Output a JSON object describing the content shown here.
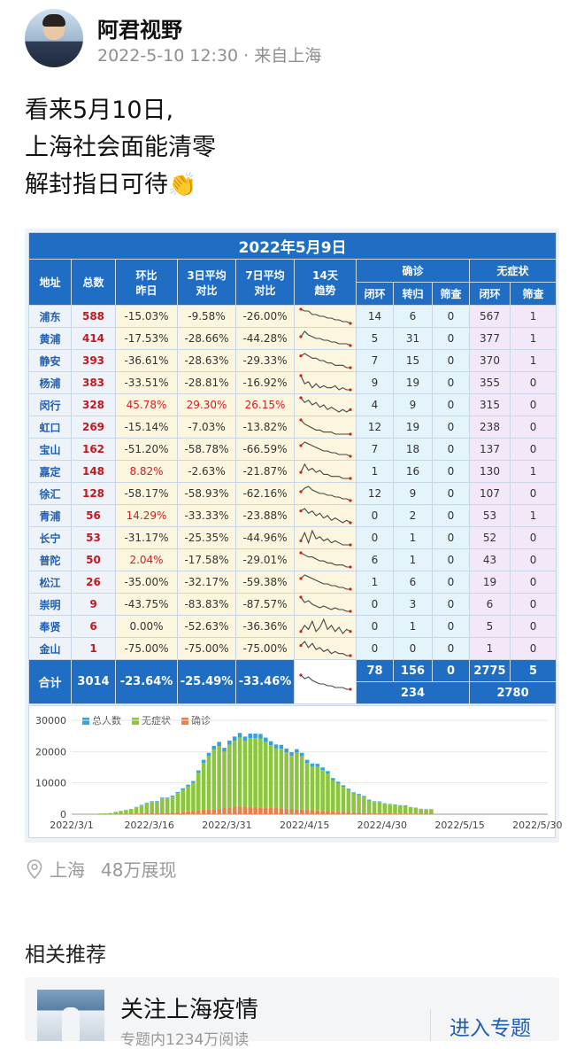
{
  "post": {
    "author": "阿君视野",
    "meta": "2022-5-10 12:30 · 来自上海",
    "lines": [
      "看来5月10日,",
      "上海社会面能清零",
      "解封指日可待"
    ],
    "emoji": "👏"
  },
  "table": {
    "title": "2022年5月9日",
    "headers": {
      "district": "地址",
      "total": "总数",
      "dod": [
        "环比",
        "昨日"
      ],
      "d3": [
        "3日平均",
        "对比"
      ],
      "d7": [
        "7日平均",
        "对比"
      ],
      "trend": [
        "14天",
        "趋势"
      ],
      "confirmed": "确诊",
      "asymptomatic": "无症状",
      "closed_loop": "闭环",
      "converted": "转归",
      "screening": "筛查",
      "closed_loop2": "闭环",
      "screening2": "筛查"
    },
    "rows": [
      {
        "name": "浦东",
        "total": "588",
        "dod": "-15.03%",
        "d3": "-9.58%",
        "d7": "-26.00%",
        "c1": "14",
        "c2": "6",
        "c3": "0",
        "a1": "567",
        "a2": "1",
        "spark": [
          9,
          8,
          8,
          6,
          6,
          5,
          5,
          4,
          4,
          3,
          3,
          2,
          2,
          1
        ]
      },
      {
        "name": "黄浦",
        "total": "414",
        "dod": "-17.53%",
        "d3": "-28.66%",
        "d7": "-44.28%",
        "c1": "5",
        "c2": "31",
        "c3": "0",
        "a1": "377",
        "a2": "1",
        "spark": [
          6,
          9,
          7,
          6,
          5,
          5,
          4,
          4,
          3,
          3,
          2,
          2,
          2,
          1
        ]
      },
      {
        "name": "静安",
        "total": "393",
        "dod": "-36.61%",
        "d3": "-28.63%",
        "d7": "-29.33%",
        "c1": "7",
        "c2": "15",
        "c3": "0",
        "a1": "370",
        "a2": "1",
        "spark": [
          7,
          8,
          7,
          6,
          6,
          5,
          5,
          4,
          4,
          3,
          3,
          3,
          2,
          2
        ]
      },
      {
        "name": "杨浦",
        "total": "383",
        "dod": "-33.51%",
        "d3": "-28.81%",
        "d7": "-16.92%",
        "c1": "9",
        "c2": "19",
        "c3": "0",
        "a1": "355",
        "a2": "0",
        "spark": [
          9,
          5,
          6,
          3,
          5,
          3,
          4,
          3,
          3,
          4,
          2,
          3,
          2,
          2
        ]
      },
      {
        "name": "闵行",
        "total": "328",
        "dod": "45.78%",
        "d3": "29.30%",
        "d7": "26.15%",
        "c1": "4",
        "c2": "9",
        "c3": "0",
        "a1": "315",
        "a2": "0",
        "spark": [
          8,
          6,
          7,
          5,
          6,
          4,
          5,
          3,
          4,
          3,
          2,
          3,
          2,
          3
        ]
      },
      {
        "name": "虹口",
        "total": "269",
        "dod": "-15.14%",
        "d3": "-7.03%",
        "d7": "-13.82%",
        "c1": "12",
        "c2": "19",
        "c3": "0",
        "a1": "238",
        "a2": "0",
        "spark": [
          9,
          7,
          6,
          5,
          4,
          4,
          3,
          3,
          3,
          2,
          2,
          2,
          2,
          2
        ]
      },
      {
        "name": "宝山",
        "total": "162",
        "dod": "-51.20%",
        "d3": "-58.78%",
        "d7": "-66.59%",
        "c1": "7",
        "c2": "18",
        "c3": "0",
        "a1": "137",
        "a2": "0",
        "spark": [
          7,
          9,
          8,
          7,
          6,
          5,
          4,
          4,
          3,
          3,
          2,
          2,
          2,
          1
        ]
      },
      {
        "name": "嘉定",
        "total": "148",
        "dod": "8.82%",
        "d3": "-2.63%",
        "d7": "-21.87%",
        "c1": "1",
        "c2": "16",
        "c3": "0",
        "a1": "130",
        "a2": "1",
        "spark": [
          5,
          9,
          6,
          7,
          5,
          6,
          4,
          4,
          3,
          3,
          3,
          2,
          2,
          2
        ]
      },
      {
        "name": "徐汇",
        "total": "128",
        "dod": "-58.17%",
        "d3": "-58.93%",
        "d7": "-62.16%",
        "c1": "12",
        "c2": "9",
        "c3": "0",
        "a1": "107",
        "a2": "0",
        "spark": [
          6,
          8,
          9,
          7,
          6,
          5,
          5,
          4,
          4,
          3,
          3,
          2,
          2,
          1
        ]
      },
      {
        "name": "青浦",
        "total": "56",
        "dod": "14.29%",
        "d3": "-33.33%",
        "d7": "-23.88%",
        "c1": "0",
        "c2": "2",
        "c3": "0",
        "a1": "53",
        "a2": "1",
        "spark": [
          7,
          8,
          6,
          7,
          5,
          6,
          4,
          5,
          3,
          4,
          3,
          2,
          3,
          2
        ]
      },
      {
        "name": "长宁",
        "total": "53",
        "dod": "-31.17%",
        "d3": "-25.35%",
        "d7": "-44.96%",
        "c1": "0",
        "c2": "1",
        "c3": "0",
        "a1": "52",
        "a2": "0",
        "spark": [
          4,
          8,
          3,
          9,
          5,
          6,
          4,
          5,
          3,
          4,
          3,
          2,
          2,
          2
        ]
      },
      {
        "name": "普陀",
        "total": "50",
        "dod": "2.04%",
        "d3": "-17.58%",
        "d7": "-29.01%",
        "c1": "6",
        "c2": "1",
        "c3": "0",
        "a1": "43",
        "a2": "0",
        "spark": [
          9,
          8,
          7,
          7,
          6,
          5,
          5,
          4,
          4,
          3,
          3,
          3,
          2,
          2
        ]
      },
      {
        "name": "松江",
        "total": "26",
        "dod": "-35.00%",
        "d3": "-32.17%",
        "d7": "-59.38%",
        "c1": "1",
        "c2": "6",
        "c3": "0",
        "a1": "19",
        "a2": "0",
        "spark": [
          7,
          9,
          8,
          7,
          6,
          5,
          4,
          4,
          3,
          3,
          2,
          2,
          1,
          1
        ]
      },
      {
        "name": "崇明",
        "total": "9",
        "dod": "-43.75%",
        "d3": "-83.83%",
        "d7": "-87.57%",
        "c1": "0",
        "c2": "3",
        "c3": "0",
        "a1": "6",
        "a2": "0",
        "spark": [
          9,
          6,
          7,
          5,
          4,
          3,
          4,
          3,
          2,
          3,
          2,
          2,
          1,
          1
        ]
      },
      {
        "name": "奉贤",
        "total": "6",
        "dod": "0.00%",
        "d3": "-52.63%",
        "d7": "-36.36%",
        "c1": "0",
        "c2": "1",
        "c3": "0",
        "a1": "5",
        "a2": "0",
        "spark": [
          3,
          6,
          4,
          8,
          3,
          5,
          9,
          4,
          6,
          3,
          5,
          2,
          4,
          3
        ]
      },
      {
        "name": "金山",
        "total": "1",
        "dod": "-75.00%",
        "d3": "-75.00%",
        "d7": "-75.00%",
        "c1": "0",
        "c2": "0",
        "c3": "0",
        "a1": "1",
        "a2": "0",
        "spark": [
          6,
          8,
          5,
          7,
          4,
          5,
          3,
          4,
          2,
          3,
          2,
          2,
          1,
          1
        ]
      }
    ],
    "totals": {
      "label": "合计",
      "total": "3014",
      "dod": "-23.64%",
      "d3": "-25.49%",
      "d7": "-33.46%",
      "c1": "78",
      "c2": "156",
      "c3": "0",
      "a1": "2775",
      "a2": "5",
      "confirmed_sum": "234",
      "asym_sum": "2780",
      "spark": [
        9,
        7,
        8,
        6,
        5,
        4,
        4,
        3,
        3,
        2,
        2,
        2,
        1,
        1
      ]
    }
  },
  "chart_data": {
    "type": "bar",
    "legend": [
      "总人数",
      "无症状",
      "确诊"
    ],
    "colors": {
      "total": "#3aa0d8",
      "asym": "#8cc63f",
      "confirmed": "#e8804a"
    },
    "ytick_labels": [
      "30000",
      "20000",
      "10000",
      "0"
    ],
    "ylim": [
      0,
      30000
    ],
    "xtick_labels": [
      "2022/3/1",
      "2022/3/16",
      "2022/3/31",
      "2022/4/15",
      "2022/4/30",
      "2022/5/15",
      "2022/5/30"
    ],
    "x_start": "2022-03-01",
    "series": [
      {
        "name": "无症状",
        "values": [
          3,
          30,
          60,
          60,
          100,
          200,
          250,
          350,
          650,
          900,
          1200,
          1500,
          2000,
          2500,
          3000,
          3500,
          3500,
          4500,
          4500,
          5000,
          6000,
          7000,
          8000,
          9000,
          12000,
          15000,
          17000,
          19000,
          20000,
          18000,
          20000,
          21000,
          22000,
          21000,
          22000,
          22000,
          22000,
          21000,
          20000,
          19000,
          19000,
          18000,
          17000,
          18000,
          17000,
          15000,
          14000,
          14000,
          13000,
          12000,
          10000,
          9000,
          8000,
          7000,
          6000,
          5500,
          5000,
          4000,
          3500,
          3500,
          3000,
          2800,
          2700,
          2500,
          2500,
          2000,
          1800,
          1500,
          1400,
          1400
        ]
      },
      {
        "name": "确诊",
        "values": [
          0,
          5,
          10,
          5,
          10,
          20,
          20,
          20,
          60,
          90,
          100,
          100,
          200,
          300,
          400,
          400,
          450,
          500,
          500,
          600,
          700,
          800,
          900,
          1000,
          1200,
          1400,
          1500,
          1600,
          1800,
          2000,
          2200,
          2400,
          2500,
          2400,
          2300,
          2300,
          2200,
          2100,
          2000,
          2000,
          1900,
          1800,
          1700,
          1600,
          1500,
          1400,
          1300,
          1200,
          1100,
          1000,
          900,
          800,
          700,
          700,
          600,
          600,
          500,
          400,
          400,
          350,
          300,
          280,
          250,
          220,
          200,
          190,
          180,
          150,
          140,
          140
        ]
      }
    ]
  },
  "location": {
    "place": "上海",
    "views": "48万展现"
  },
  "related": {
    "title": "相关推荐",
    "topic_title": "关注上海疫情",
    "topic_sub": "专题内1234万阅读",
    "enter_label": "进入专题"
  }
}
